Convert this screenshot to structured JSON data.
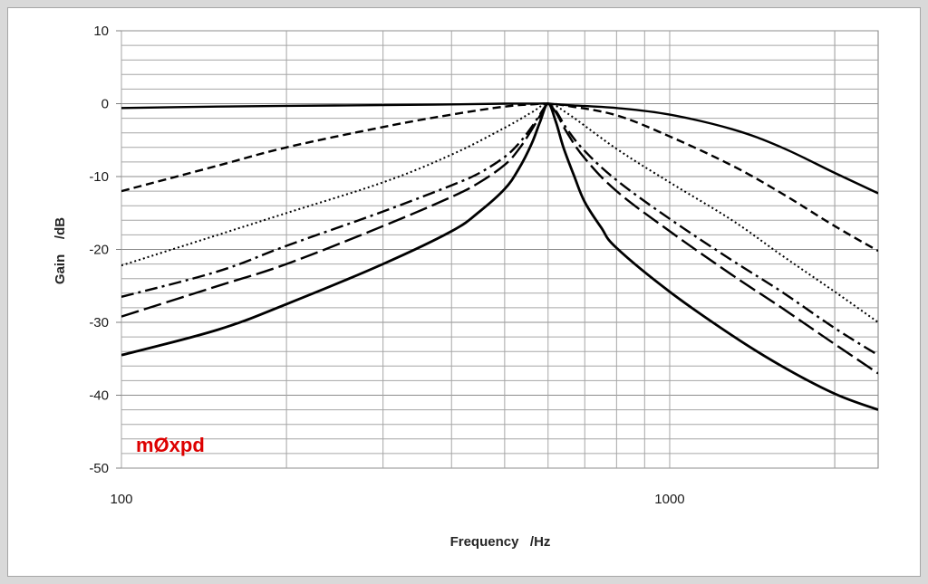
{
  "chart_data": {
    "type": "line",
    "title": "",
    "xlabel": "Frequency   /Hz",
    "ylabel": "Gain    /dB",
    "x_scale": "log",
    "xlim": [
      100,
      2400
    ],
    "ylim": [
      -50,
      10
    ],
    "x_tick_labels": [
      "100",
      "1000"
    ],
    "y_ticks": [
      10,
      0,
      -10,
      -20,
      -30,
      -40,
      -50
    ],
    "y_tick_labels": [
      "10",
      "0",
      "-10",
      "-20",
      "-30",
      "-40",
      "-50"
    ],
    "grid": true,
    "legend": "none",
    "series": [
      {
        "style": "solid",
        "x": [
          100,
          150,
          200,
          300,
          400,
          500,
          560,
          600,
          650,
          800,
          1000,
          1300,
          1600,
          2000,
          2400
        ],
        "y": [
          -0.6,
          -0.4,
          -0.3,
          -0.2,
          -0.1,
          0,
          0,
          0,
          -0.2,
          -0.6,
          -1.5,
          -3.5,
          -6,
          -9.5,
          -12.3
        ]
      },
      {
        "style": "dashed",
        "x": [
          100,
          150,
          200,
          300,
          400,
          500,
          560,
          600,
          650,
          800,
          1000,
          1300,
          1600,
          2000,
          2400
        ],
        "y": [
          -12,
          -8.5,
          -6,
          -3.2,
          -1.5,
          -0.4,
          -0.1,
          0,
          -0.3,
          -1.6,
          -4.5,
          -8.5,
          -12.3,
          -16.8,
          -20.2
        ]
      },
      {
        "style": "dotted",
        "x": [
          100,
          150,
          200,
          300,
          400,
          500,
          560,
          600,
          650,
          800,
          1000,
          1300,
          1600,
          2000,
          2400
        ],
        "y": [
          -22.2,
          -18,
          -15,
          -10.8,
          -7,
          -3.3,
          -1.2,
          0,
          -1.3,
          -6.2,
          -10.8,
          -16,
          -20.8,
          -25.8,
          -30
        ]
      },
      {
        "style": "dash-dot",
        "x": [
          100,
          150,
          200,
          300,
          400,
          450,
          500,
          530,
          560,
          590,
          600,
          620,
          650,
          700,
          800,
          1000,
          1300,
          1600,
          2000,
          2400
        ],
        "y": [
          -26.5,
          -23,
          -19.5,
          -14.8,
          -11.2,
          -9.5,
          -7.3,
          -5.5,
          -3.2,
          -0.6,
          0,
          -1,
          -3.5,
          -6.5,
          -10.5,
          -15.8,
          -21.5,
          -25.8,
          -30.8,
          -34.5
        ]
      },
      {
        "style": "long-dash",
        "x": [
          100,
          150,
          200,
          300,
          400,
          450,
          500,
          530,
          560,
          590,
          600,
          620,
          650,
          700,
          800,
          1000,
          1300,
          1600,
          2000,
          2400
        ],
        "y": [
          -29.2,
          -25,
          -22,
          -16.8,
          -12.8,
          -10.8,
          -8.4,
          -6.3,
          -3.6,
          -0.7,
          0,
          -1.2,
          -4,
          -7.5,
          -12,
          -17.5,
          -23.5,
          -28,
          -33,
          -37
        ]
      },
      {
        "style": "solid-heavy",
        "x": [
          100,
          150,
          200,
          300,
          400,
          450,
          500,
          530,
          560,
          580,
          600,
          620,
          640,
          670,
          700,
          750,
          800,
          1000,
          1300,
          1600,
          2000,
          2400
        ],
        "y": [
          -34.5,
          -31,
          -27.5,
          -22,
          -17.5,
          -14.8,
          -11.7,
          -9,
          -5.5,
          -2.5,
          0,
          -2.5,
          -6,
          -10,
          -13.5,
          -17,
          -19.8,
          -25.8,
          -31.8,
          -36,
          -39.8,
          -42
        ]
      }
    ]
  },
  "watermark": {
    "text": "mØxpd",
    "color": "#dd0000"
  }
}
